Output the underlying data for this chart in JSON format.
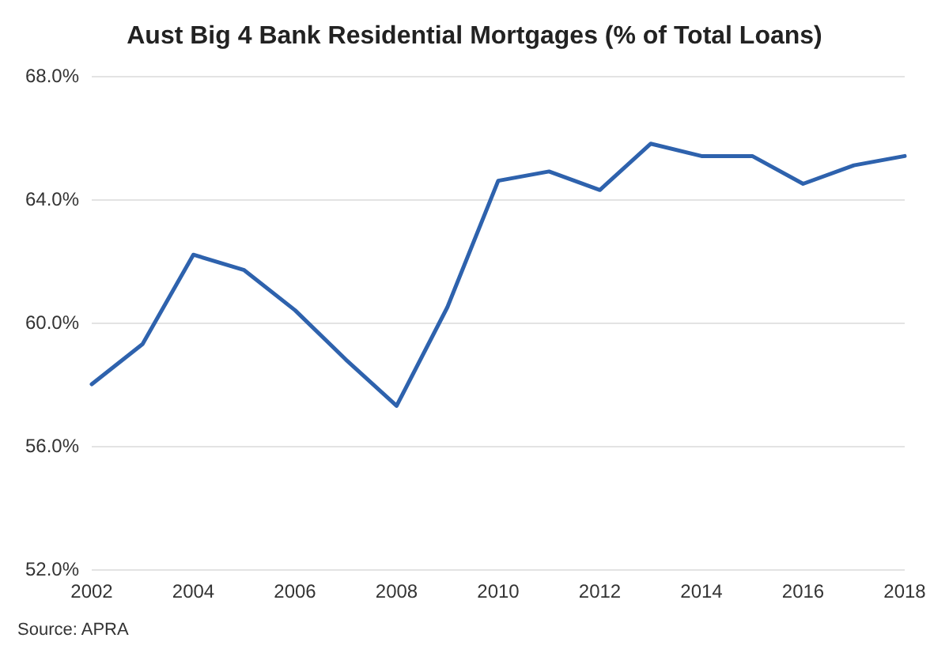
{
  "chart_data": {
    "type": "line",
    "title": "Aust Big 4 Bank Residential Mortgages (% of Total Loans)",
    "x": [
      2002,
      2003,
      2004,
      2005,
      2006,
      2007,
      2008,
      2009,
      2010,
      2011,
      2012,
      2013,
      2014,
      2015,
      2016,
      2017,
      2018
    ],
    "series": [
      {
        "color": "#2e62ad",
        "values": [
          58.0,
          59.3,
          62.2,
          61.7,
          60.4,
          58.8,
          57.3,
          60.5,
          64.6,
          64.9,
          64.3,
          65.8,
          65.4,
          65.4,
          64.5,
          65.1,
          65.4
        ]
      }
    ],
    "xlim": [
      2002,
      2018
    ],
    "xticks": [
      2002,
      2004,
      2006,
      2008,
      2010,
      2012,
      2014,
      2016,
      2018
    ],
    "ylim": [
      52,
      68
    ],
    "yticks": [
      {
        "value": 52,
        "label": "52.0%"
      },
      {
        "value": 56,
        "label": "56.0%"
      },
      {
        "value": 60,
        "label": "60.0%"
      },
      {
        "value": 64,
        "label": "64.0%"
      },
      {
        "value": 68,
        "label": "68.0%"
      }
    ],
    "grid": "y",
    "marker": "none",
    "line_style": "solid",
    "annotations": [
      "Source: APRA"
    ]
  }
}
